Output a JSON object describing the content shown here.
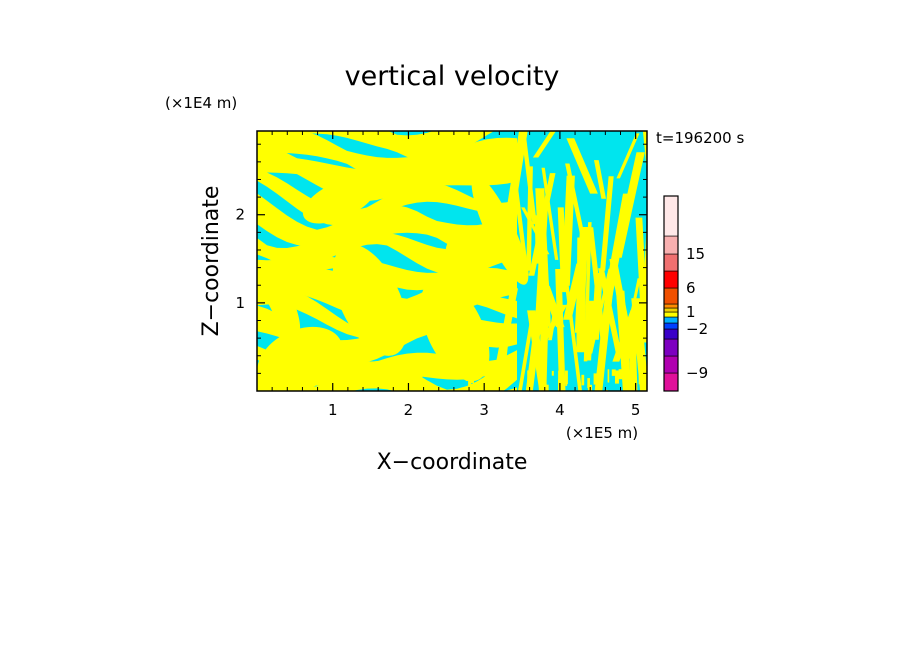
{
  "chart_data": {
    "type": "heatmap",
    "title": "vertical velocity",
    "xlabel": "X−coordinate",
    "ylabel": "Z−coordinate",
    "x_scale_label": "(×1E5 m)",
    "y_scale_label": "(×1E4 m)",
    "time_label": "t=196200 s",
    "xlim": [
      0,
      5.15
    ],
    "ylim": [
      0,
      2.95
    ],
    "x_ticks": [
      1,
      2,
      3,
      4,
      5
    ],
    "x_tick_labels": [
      "1",
      "2",
      "3",
      "4",
      "5"
    ],
    "y_ticks": [
      1,
      2
    ],
    "y_tick_labels": [
      "1",
      "2"
    ],
    "field_colors": {
      "positive": "#ffff00",
      "negative": "#00e5ee"
    },
    "colorbar": {
      "levels": [
        -12,
        -9,
        -6,
        -4,
        -2,
        -1,
        0,
        1,
        2,
        4,
        6,
        10,
        15,
        20,
        25
      ],
      "colors": [
        "#e0109a",
        "#b000b0",
        "#7d00c0",
        "#3a00c8",
        "#0040ff",
        "#00b0ff",
        "#ffff00",
        "#f0d000",
        "#ff8c00",
        "#f05000",
        "#ff0000",
        "#f07070",
        "#f8b0b0",
        "#ffe8e8"
      ],
      "labels": [
        {
          "value": -9,
          "text": "−9"
        },
        {
          "value": -2,
          "text": "−2"
        },
        {
          "value": 1,
          "text": "1"
        },
        {
          "value": 6,
          "text": "6"
        },
        {
          "value": 15,
          "text": "15"
        }
      ]
    }
  }
}
